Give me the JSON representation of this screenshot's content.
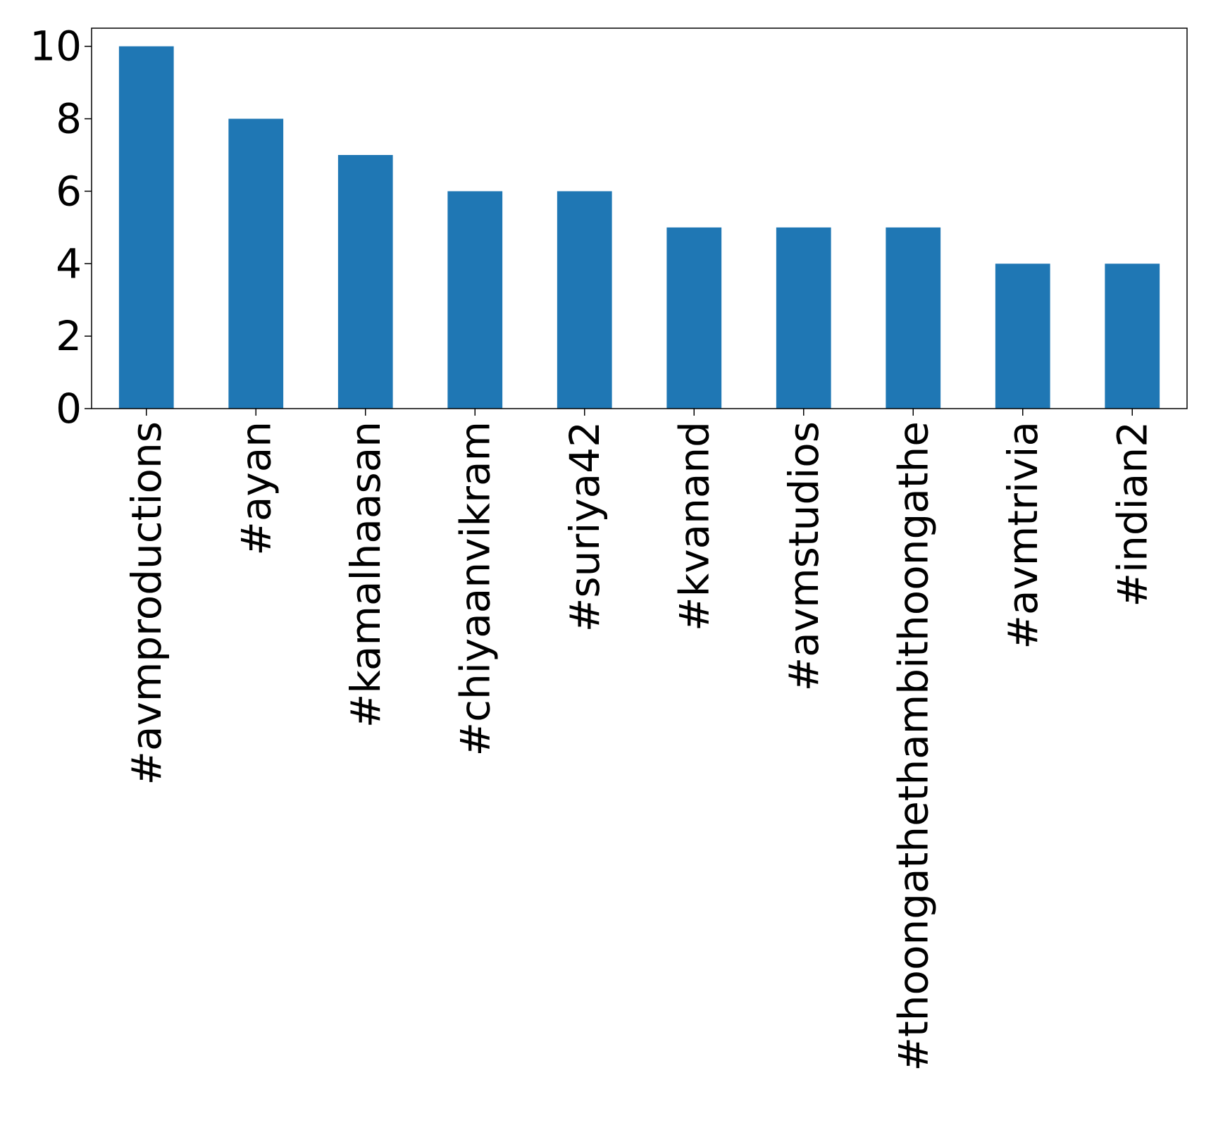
{
  "chart_data": {
    "type": "bar",
    "categories": [
      "#avmproductions",
      "#ayan",
      "#kamalhaasan",
      "#chiyaanvikram",
      "#suriya42",
      "#kvanand",
      "#avmstudios",
      "#thoongathethambithoongathe",
      "#avmtrivia",
      "#indian2"
    ],
    "values": [
      10,
      8,
      7,
      6,
      6,
      5,
      5,
      5,
      4,
      4
    ],
    "title": "",
    "xlabel": "",
    "ylabel": "",
    "ylim": [
      0,
      10.5
    ],
    "yticks": [
      0,
      2,
      4,
      6,
      8,
      10
    ],
    "bar_color": "#1f77b4",
    "grid": false,
    "legend": false
  }
}
